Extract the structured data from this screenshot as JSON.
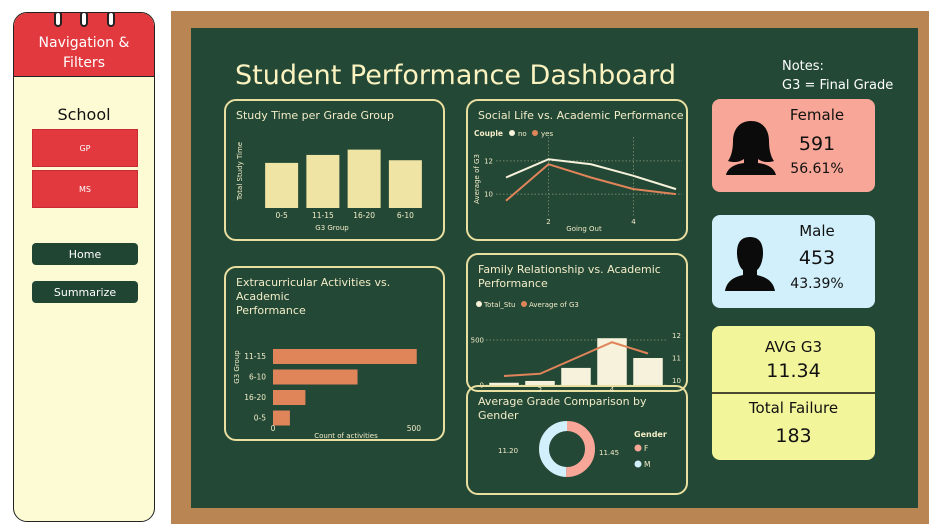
{
  "sidebar": {
    "title_line1": "Navigation &",
    "title_line2": "Filters",
    "school_label": "School",
    "school_options": [
      "GP",
      "MS"
    ],
    "nav": {
      "home": "Home",
      "summarize": "Summarize"
    }
  },
  "dashboard": {
    "title": "Student Performance Dashboard",
    "notes_line1": "Notes:",
    "notes_line2": "G3 = Final Grade"
  },
  "cards": {
    "female": {
      "label": "Female",
      "count": "591",
      "percent": "56.61%",
      "color": "#f8a697"
    },
    "male": {
      "label": "Male",
      "count": "453",
      "percent": "43.39%",
      "color": "#d2f0fb"
    },
    "avg_g3": {
      "label": "AVG G3",
      "value": "11.34",
      "color": "#f3f59a"
    },
    "total_failure": {
      "label": "Total Failure",
      "value": "183"
    }
  },
  "colors": {
    "accent_orange": "#e0845a",
    "bar_cream": "#efe4a4",
    "line_white": "#f7f2dc",
    "board_green": "#234836",
    "frame_brown": "#b88553"
  },
  "chart_data": [
    {
      "id": "study_time",
      "type": "bar",
      "title": "Study Time per Grade Group",
      "xlabel": "G3 Group",
      "ylabel": "Total Study Time",
      "categories": [
        "0-5",
        "11-15",
        "16-20",
        "6-10"
      ],
      "values": [
        1.7,
        2.0,
        2.2,
        1.8
      ],
      "ylim": [
        0,
        2.6
      ]
    },
    {
      "id": "social_life",
      "type": "line",
      "title": "Social Life vs. Academic Performance",
      "legend_title": "Couple",
      "xlabel": "Going Out",
      "ylabel": "Average of G3",
      "x": [
        1,
        2,
        3,
        4,
        5
      ],
      "x_ticks": [
        2,
        4
      ],
      "y_ticks": [
        10,
        12
      ],
      "ylim": [
        8.8,
        13.2
      ],
      "series": [
        {
          "name": "no",
          "values": [
            11.0,
            12.1,
            11.8,
            11.1,
            10.3
          ],
          "color": "#f7f2dc"
        },
        {
          "name": "yes",
          "values": [
            9.6,
            11.8,
            11.0,
            10.3,
            10.0
          ],
          "color": "#e0845a"
        }
      ]
    },
    {
      "id": "extracurricular",
      "type": "bar",
      "orientation": "horizontal",
      "title_line1": "Extracurricular Activities vs. Academic",
      "title_line2": "Performance",
      "xlabel": "Count of activities",
      "ylabel": "G3 Group",
      "categories": [
        "11-15",
        "6-10",
        "16-20",
        "0-5"
      ],
      "values": [
        510,
        300,
        115,
        60
      ],
      "x_ticks": [
        0,
        500
      ],
      "xlim": [
        0,
        550
      ]
    },
    {
      "id": "family_relationship",
      "type": "bar",
      "combo": "bar+line",
      "title_line1": "Family Relationship vs. Academic",
      "title_line2": "Performance",
      "x": [
        1,
        2,
        3,
        4,
        5
      ],
      "x_ticks": [
        2,
        4
      ],
      "series": [
        {
          "name": "Total_Stu",
          "type": "bar",
          "values": [
            25,
            45,
            190,
            520,
            300
          ],
          "color": "#f7f2dc"
        },
        {
          "name": "Average of G3",
          "type": "line",
          "values": [
            10.2,
            10.3,
            11.0,
            11.7,
            11.2
          ],
          "color": "#e0845a"
        }
      ],
      "y_left_ticks": [
        0,
        500
      ],
      "y_left_lim": [
        0,
        600
      ],
      "y_right_ticks": [
        10,
        11,
        12
      ],
      "y_right_lim": [
        9.8,
        12.2
      ]
    },
    {
      "id": "avg_grade_gender",
      "type": "pie",
      "title": "Average Grade Comparison by Gender",
      "legend_title": "Gender",
      "categories": [
        "F",
        "M"
      ],
      "values": [
        11.45,
        11.2
      ],
      "colors": [
        "#f8a697",
        "#d2f0fb"
      ]
    }
  ]
}
